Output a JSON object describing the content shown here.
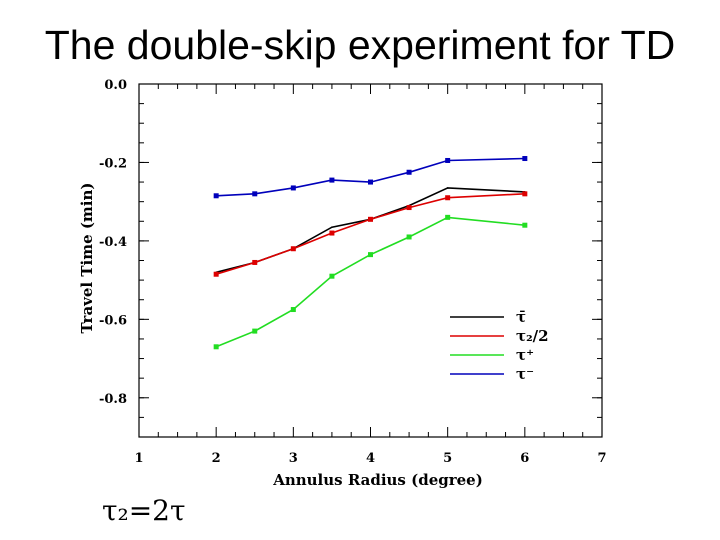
{
  "slide": {
    "title": "The double-skip experiment for TD",
    "footnote": "τ₂=2τ"
  },
  "chart_data": {
    "type": "line",
    "title": "",
    "xlabel": "Annulus Radius (degree)",
    "ylabel": "Travel Time (min)",
    "xlim": [
      1,
      7
    ],
    "ylim": [
      -0.9,
      0.0
    ],
    "xticks": [
      1,
      2,
      3,
      4,
      5,
      6,
      7
    ],
    "xtick_labels": [
      "1",
      "2",
      "3",
      "4",
      "5",
      "6",
      "7"
    ],
    "yticks": [
      0.0,
      -0.2,
      -0.4,
      -0.6,
      -0.8
    ],
    "ytick_labels": [
      "0.0",
      "-0.2",
      "-0.4",
      "-0.6",
      "-0.8"
    ],
    "x": [
      2.0,
      2.5,
      3.0,
      3.5,
      4.0,
      4.5,
      5.0,
      6.0
    ],
    "legend_position": "lower-right",
    "series": [
      {
        "name": "τ̄",
        "color": "#000000",
        "values": [
          -0.48,
          -0.455,
          -0.42,
          -0.365,
          -0.345,
          -0.31,
          -0.265,
          -0.275
        ],
        "markers": false
      },
      {
        "name": "τ₂/2",
        "color": "#dd0000",
        "values": [
          -0.485,
          -0.455,
          -0.42,
          -0.38,
          -0.345,
          -0.315,
          -0.29,
          -0.28
        ],
        "markers": true
      },
      {
        "name": "τ⁺",
        "color": "#22dd22",
        "values": [
          -0.67,
          -0.63,
          -0.575,
          -0.49,
          -0.435,
          -0.39,
          -0.34,
          -0.36
        ],
        "markers": true
      },
      {
        "name": "τ⁻",
        "color": "#0000bb",
        "values": [
          -0.285,
          -0.28,
          -0.265,
          -0.245,
          -0.25,
          -0.225,
          -0.195,
          -0.19
        ],
        "markers": true
      }
    ]
  }
}
